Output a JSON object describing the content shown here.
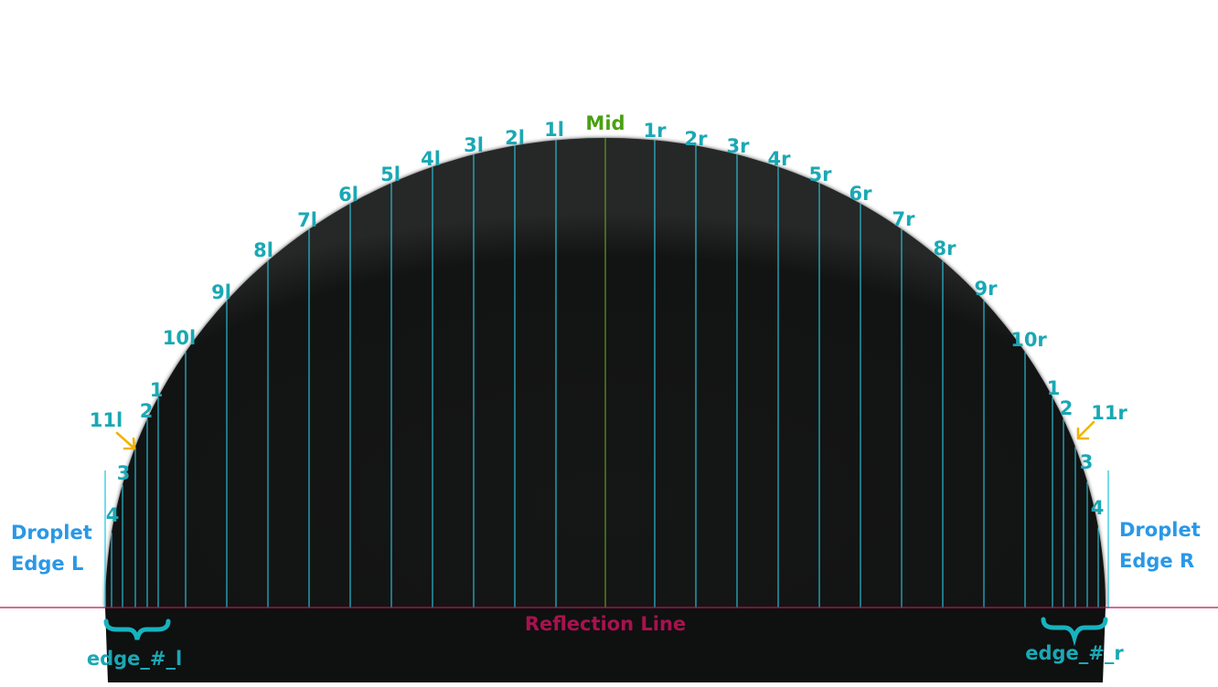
{
  "labels": {
    "mid": "Mid",
    "left_lines": [
      "1l",
      "2l",
      "3l",
      "4l",
      "5l",
      "6l",
      "7l",
      "8l",
      "9l",
      "10l",
      "11l"
    ],
    "right_lines": [
      "1r",
      "2r",
      "3r",
      "4r",
      "5r",
      "6r",
      "7r",
      "8r",
      "9r",
      "10r",
      "11r"
    ],
    "left_edge_lines": [
      "1",
      "2",
      "3",
      "4"
    ],
    "right_edge_lines": [
      "1",
      "2",
      "3",
      "4"
    ],
    "edge_left_line1": "Droplet",
    "edge_left_line2": "Edge L",
    "edge_right_line1": "Droplet",
    "edge_right_line2": "Edge R",
    "reflection": "Reflection Line",
    "edge_group_left": "edge_#_l",
    "edge_group_right": "edge_#_r"
  },
  "colors": {
    "background": "#ffffff",
    "droplet": "#121313",
    "line": "#28c9e0",
    "line_label": "#1aa8b4",
    "mid_line": "#6aa61a",
    "mid_label": "#4aa010",
    "edge_label": "#2a98e6",
    "reflection_line": "#b0185a",
    "reflection_label": "#a8124e",
    "arrow": "#f0b400",
    "brace": "#17b3bf"
  },
  "icons": {
    "left_arrow": "arrow-down-right-icon",
    "right_arrow": "arrow-down-left-icon",
    "left_brace": "curly-brace-icon",
    "right_brace": "curly-brace-icon"
  }
}
